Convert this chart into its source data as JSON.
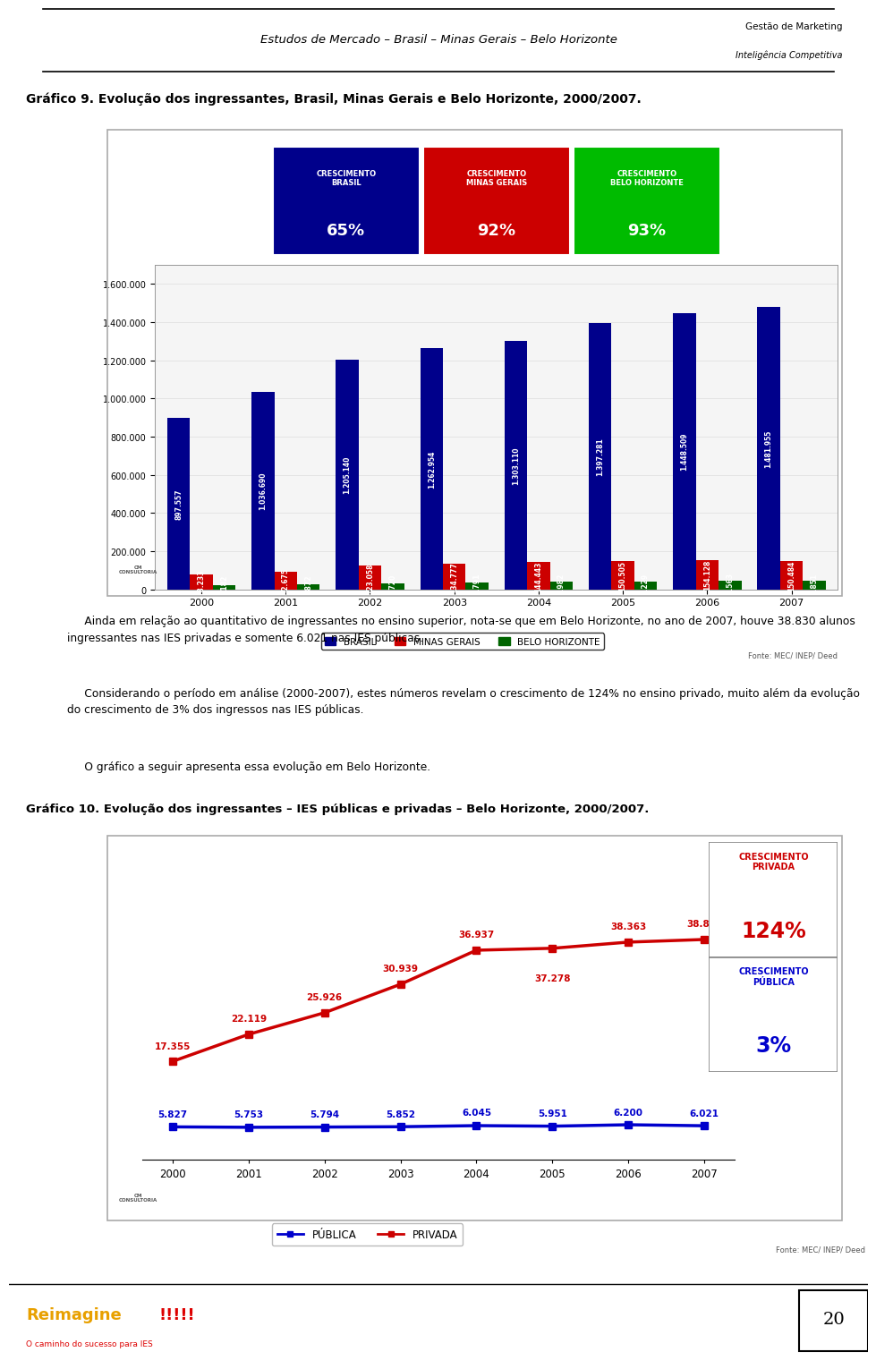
{
  "page_bg": "#ffffff",
  "header_text": "Estudos de Mercado – Brasil – Minas Gerais – Belo Horizonte",
  "grafico9_title": "Gráfico 9. Evolução dos ingressantes, Brasil, Minas Gerais e Belo Horizonte, 2000/2007.",
  "years": [
    2000,
    2001,
    2002,
    2003,
    2004,
    2005,
    2006,
    2007
  ],
  "brasil": [
    897557,
    1036690,
    1205140,
    1262954,
    1303110,
    1397281,
    1448509,
    1481955
  ],
  "minas_gerais": [
    78233,
    92675,
    123058,
    134777,
    144443,
    150505,
    154128,
    150484
  ],
  "belo_horizonte": [
    23182,
    27872,
    31720,
    36791,
    42982,
    43229,
    44563,
    44851
  ],
  "bar_color_brasil": "#00008B",
  "bar_color_minas": "#CC0000",
  "bar_color_bh": "#006400",
  "box_brasil_label": "CRESCIMENTO\nBRASIL",
  "box_brasil_pct": "65%",
  "box_brasil_color": "#00008B",
  "box_minas_label": "CRESCIMENTO\nMINAS GERAIS",
  "box_minas_pct": "92%",
  "box_minas_color": "#CC0000",
  "box_bh_label": "CRESCIMENTO\nBELO HORIZONTE",
  "box_bh_pct": "93%",
  "box_bh_color": "#00BB00",
  "legend9_labels": [
    "BRASIL",
    "MINAS GERAIS",
    "BELO HORIZONTE"
  ],
  "fonte9": "Fonte: MEC/ INEP/ Deed",
  "para1": "     Ainda em relação ao quantitativo de ingressantes no ensino superior, nota-se que em Belo Horizonte, no ano de 2007, houve 38.830 alunos ingressantes nas IES privadas e somente 6.021 nas IES públicas.",
  "para2": "     Considerando o período em análise (2000-2007), estes números revelam o crescimento de 124% no ensino privado, muito além da evolução do crescimento de 3% dos ingressos nas IES públicas.",
  "para3": "     O gráfico a seguir apresenta essa evolução em Belo Horizonte.",
  "grafico10_title": "Gráfico 10. Evolução dos ingressantes – IES públicas e privadas – Belo Horizonte, 2000/2007.",
  "publica": [
    5827,
    5753,
    5794,
    5852,
    6045,
    5951,
    6200,
    6021
  ],
  "privada": [
    17355,
    22119,
    25926,
    30939,
    36937,
    37278,
    38363,
    38830
  ],
  "line_color_publica": "#0000CC",
  "line_color_privada": "#CC0000",
  "box_privada_label": "CRESCIMENTO\nPRIVADA",
  "box_privada_pct": "124%",
  "box_privada_color": "#CC0000",
  "box_publica_label": "CRESCIMENTO\nPÚBLICA",
  "box_publica_pct": "3%",
  "box_publica_color": "#0000CC",
  "legend10_labels": [
    "PÚBLICA",
    "PRIVADA"
  ],
  "fonte10": "Fonte: MEC/ INEP/ Deed",
  "footer_sub": "O caminho do sucesso para IES",
  "page_num": "20"
}
